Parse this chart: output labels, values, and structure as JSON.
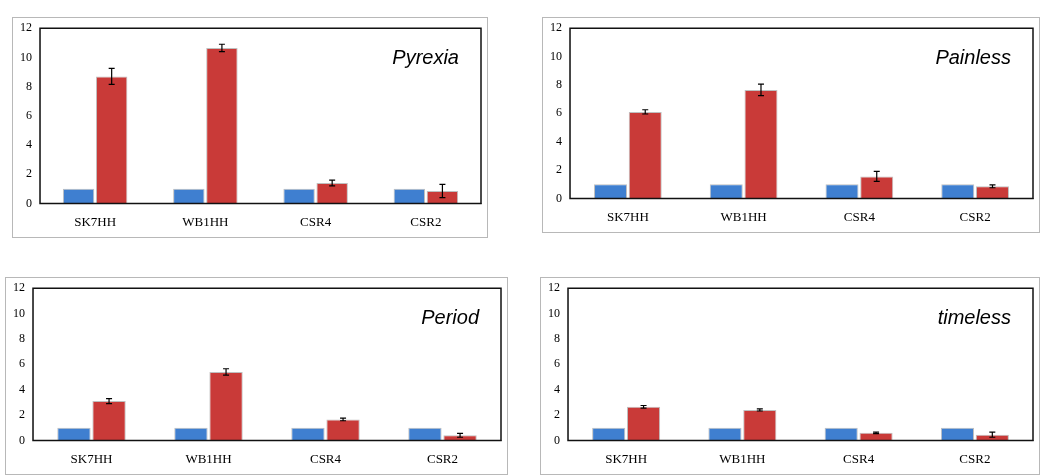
{
  "chart_data": [
    {
      "type": "bar",
      "title": "Pyrexia",
      "categories": [
        "SK7HH",
        "WB1HH",
        "CSR4",
        "CSR2"
      ],
      "ylim": [
        0,
        12
      ],
      "yticks": [
        0,
        2,
        4,
        6,
        8,
        10,
        12
      ],
      "series": [
        {
          "color": "#3f7fd0",
          "values": [
            1,
            1,
            1,
            1
          ]
        },
        {
          "color": "#c93a38",
          "values": [
            8.7,
            10.65,
            1.4,
            0.85
          ],
          "errors": [
            0.55,
            0.25,
            0.2,
            0.45
          ]
        }
      ]
    },
    {
      "type": "bar",
      "title": "Painless",
      "categories": [
        "SK7HH",
        "WB1HH",
        "CSR4",
        "CSR2"
      ],
      "ylim": [
        0,
        12
      ],
      "yticks": [
        0,
        2,
        4,
        6,
        8,
        10,
        12
      ],
      "series": [
        {
          "color": "#3f7fd0",
          "values": [
            1,
            1,
            1,
            1
          ]
        },
        {
          "color": "#c93a38",
          "values": [
            6.1,
            7.65,
            1.55,
            0.85
          ],
          "errors": [
            0.15,
            0.4,
            0.35,
            0.1
          ]
        }
      ]
    },
    {
      "type": "bar",
      "title": "Period",
      "categories": [
        "SK7HH",
        "WB1HH",
        "CSR4",
        "CSR2"
      ],
      "ylim": [
        0,
        12
      ],
      "yticks": [
        0,
        2,
        4,
        6,
        8,
        10,
        12
      ],
      "series": [
        {
          "color": "#3f7fd0",
          "values": [
            1,
            1,
            1,
            1
          ]
        },
        {
          "color": "#c93a38",
          "values": [
            3.1,
            5.4,
            1.65,
            0.4
          ],
          "errors": [
            0.2,
            0.25,
            0.1,
            0.15
          ]
        }
      ]
    },
    {
      "type": "bar",
      "title": "timeless",
      "categories": [
        "SK7HH",
        "WB1HH",
        "CSR4",
        "CSR2"
      ],
      "ylim": [
        0,
        12
      ],
      "yticks": [
        0,
        2,
        4,
        6,
        8,
        10,
        12
      ],
      "series": [
        {
          "color": "#3f7fd0",
          "values": [
            1,
            1,
            1,
            1
          ]
        },
        {
          "color": "#c93a38",
          "values": [
            2.65,
            2.4,
            0.6,
            0.45
          ],
          "errors": [
            0.1,
            0.08,
            0.06,
            0.2
          ]
        }
      ]
    }
  ]
}
